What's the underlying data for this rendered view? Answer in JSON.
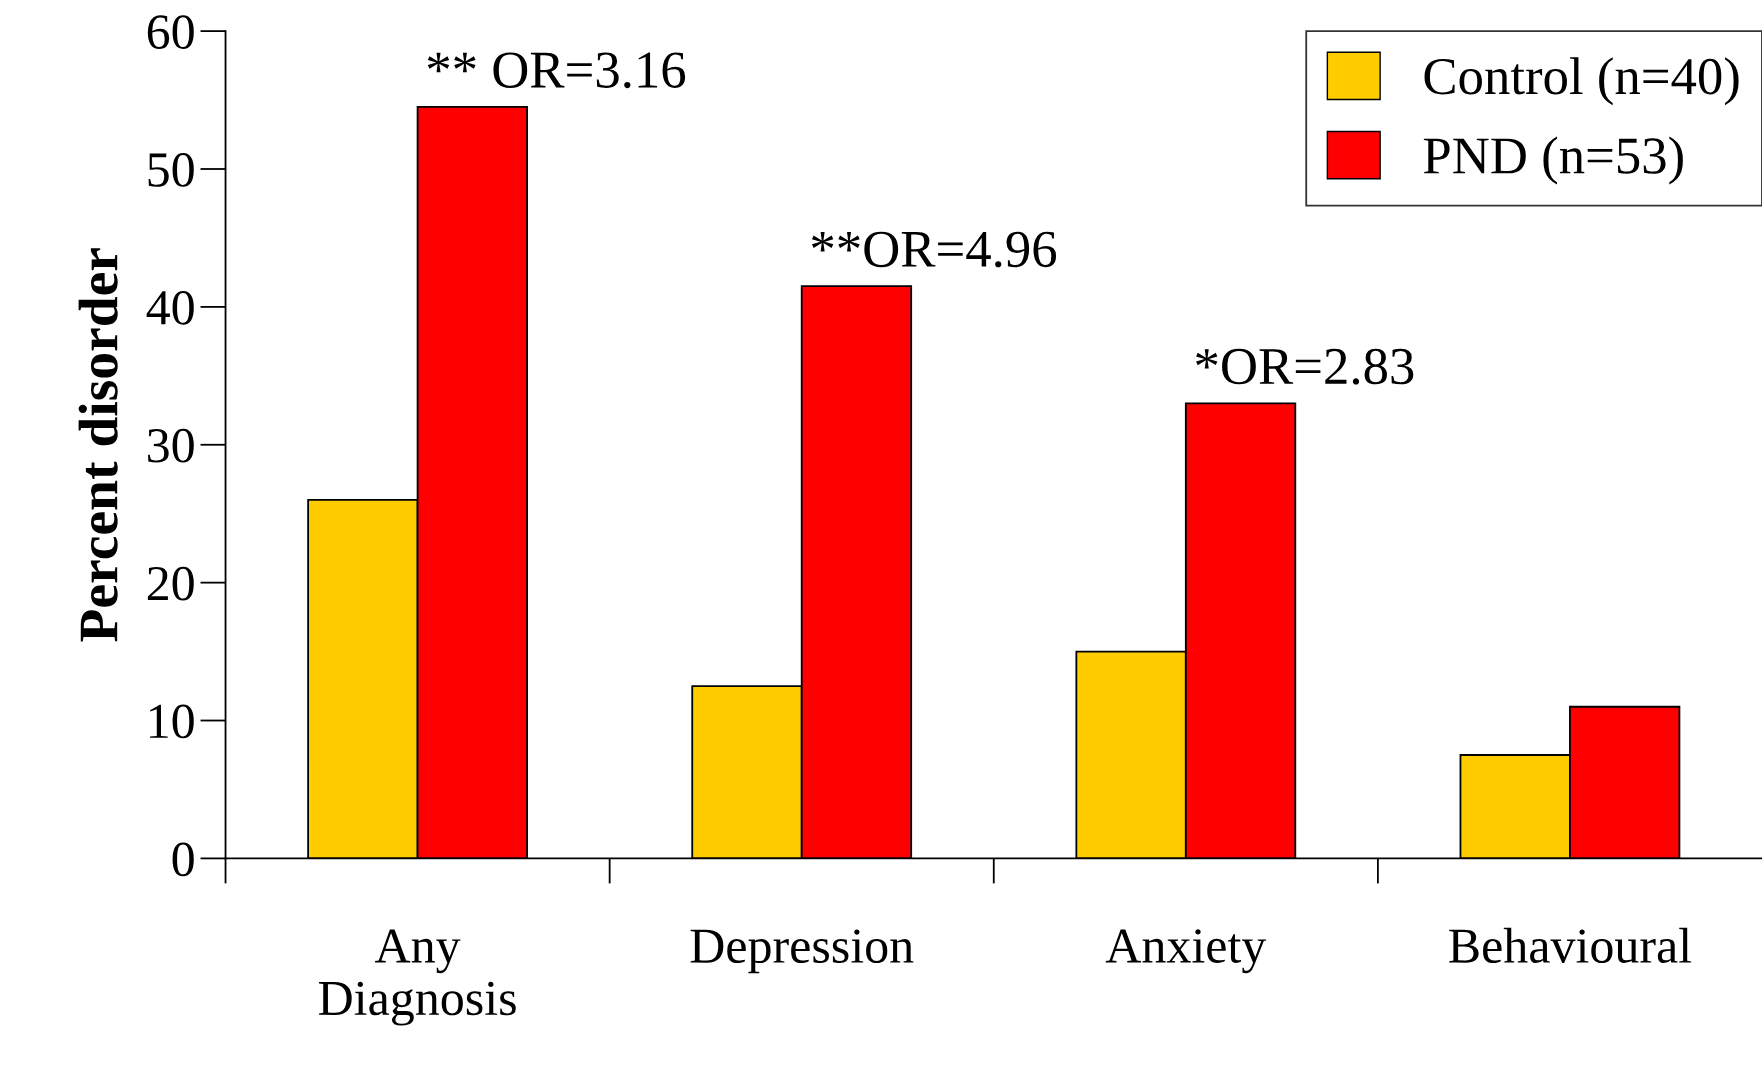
{
  "chart_data": {
    "type": "bar",
    "ylabel": "Percent disorder",
    "categories": [
      "Any\nDiagnosis",
      "Depression",
      "Anxiety",
      "Behavioural"
    ],
    "series": [
      {
        "name": "Control (n=40)",
        "color": "#ffcc00",
        "values": [
          26,
          12.5,
          15,
          7.5
        ]
      },
      {
        "name": "PND (n=53)",
        "color": "#ff0000",
        "values": [
          54.5,
          41.5,
          33,
          11
        ]
      }
    ],
    "ylim": [
      0,
      60
    ],
    "yticks": [
      0,
      10,
      20,
      30,
      40,
      50,
      60
    ],
    "grid": false,
    "legend": "top right",
    "annotations": [
      {
        "text": "** OR=3.16",
        "x": "Any\nDiagnosis",
        "y": 54.5
      },
      {
        "text": "**OR=4.96",
        "x": "Depression",
        "y": 41.5
      },
      {
        "text": "*OR=2.83",
        "x": "Anxiety",
        "y": 33
      }
    ]
  }
}
